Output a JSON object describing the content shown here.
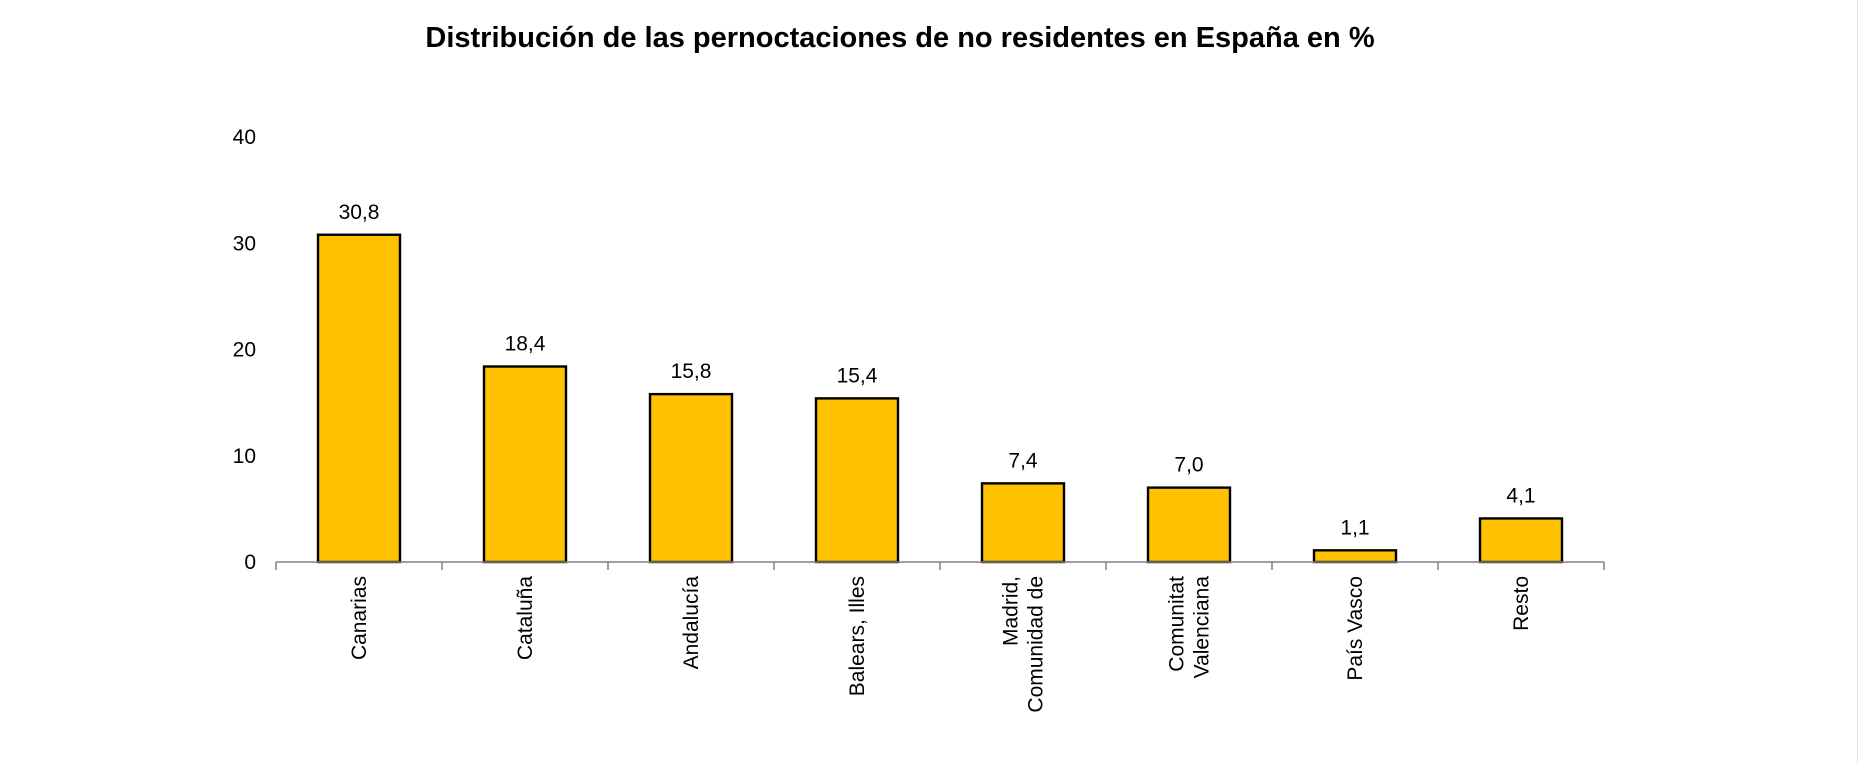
{
  "chart_data": {
    "type": "bar",
    "title": "Distribución de las pernoctaciones de no residentes en España en %",
    "xlabel": "",
    "ylabel": "",
    "ylim": [
      0,
      40
    ],
    "yticks": [
      0,
      10,
      20,
      30,
      40
    ],
    "grid": false,
    "categories": [
      "Canarias",
      "Cataluña",
      "Andalucía",
      "Balears, Illes",
      "Madrid, Comunidad de",
      "Comunitat Valenciana",
      "País Vasco",
      "Resto"
    ],
    "category_lines": [
      [
        "Canarias"
      ],
      [
        "Cataluña"
      ],
      [
        "Andalucía"
      ],
      [
        "Balears, Illes"
      ],
      [
        "Madrid,",
        "Comunidad de"
      ],
      [
        "Comunitat",
        "Valenciana"
      ],
      [
        "País Vasco"
      ],
      [
        "Resto"
      ]
    ],
    "values": [
      30.8,
      18.4,
      15.8,
      15.4,
      7.4,
      7.0,
      1.1,
      4.1
    ],
    "data_labels": [
      "30,8",
      "18,4",
      "15,8",
      "15,4",
      "7,4",
      "7,0",
      "1,1",
      "4,1"
    ],
    "bar_color": "#ffc000",
    "bar_edge_color": "#000000"
  }
}
